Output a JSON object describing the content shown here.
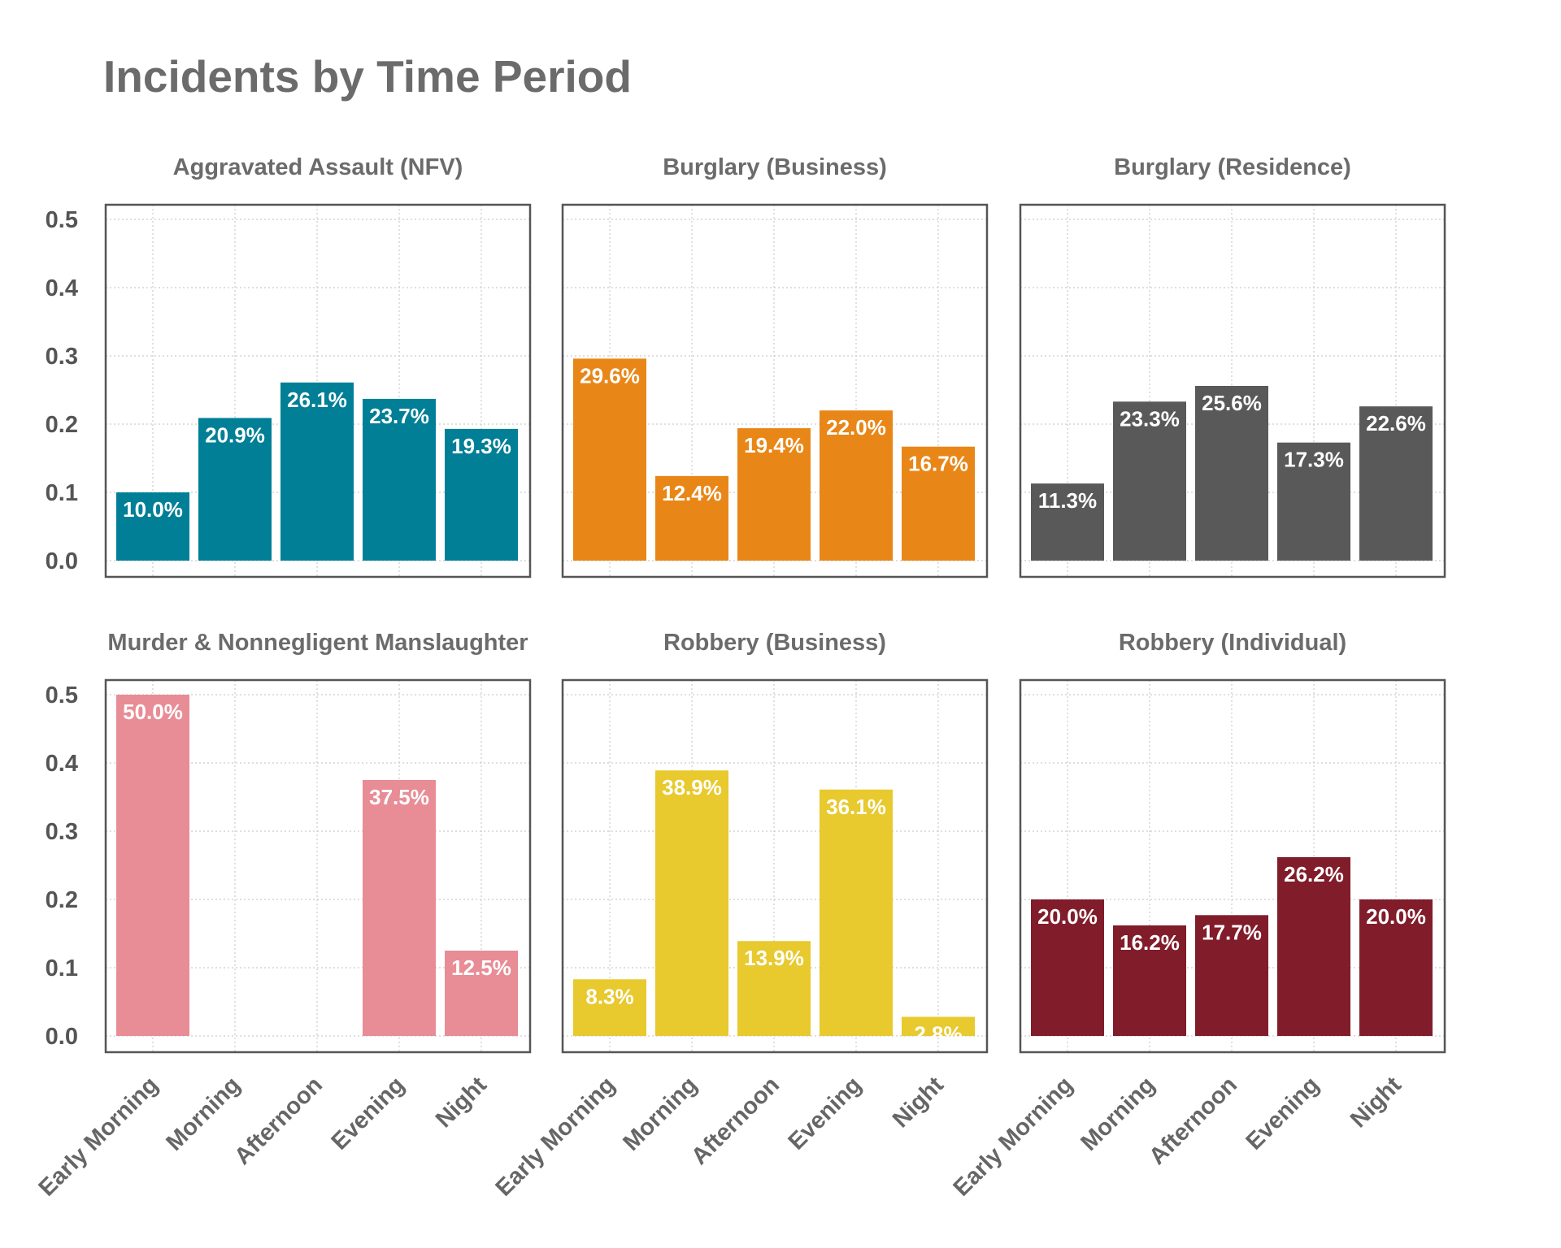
{
  "chart_data": {
    "type": "bar",
    "title": "Incidents by Time Period",
    "categories": [
      "Early Morning",
      "Morning",
      "Afternoon",
      "Evening",
      "Night"
    ],
    "ylim": [
      0,
      0.52
    ],
    "yticks": [
      "0.0",
      "0.1",
      "0.2",
      "0.3",
      "0.4",
      "0.5"
    ],
    "grid": true,
    "panels": [
      {
        "name": "Aggravated Assault (NFV)",
        "color": "#007f96",
        "values": [
          0.1,
          0.209,
          0.261,
          0.237,
          0.193
        ],
        "labels": [
          "10.0%",
          "20.9%",
          "26.1%",
          "23.7%",
          "19.3%"
        ]
      },
      {
        "name": "Burglary (Business)",
        "color": "#e88718",
        "values": [
          0.296,
          0.124,
          0.194,
          0.22,
          0.167
        ],
        "labels": [
          "29.6%",
          "12.4%",
          "19.4%",
          "22.0%",
          "16.7%"
        ]
      },
      {
        "name": "Burglary (Residence)",
        "color": "#595959",
        "values": [
          0.113,
          0.233,
          0.256,
          0.173,
          0.226
        ],
        "labels": [
          "11.3%",
          "23.3%",
          "25.6%",
          "17.3%",
          "22.6%"
        ]
      },
      {
        "name": "Murder & Nonnegligent Manslaughter",
        "color": "#e88c96",
        "values": [
          0.5,
          0,
          0,
          0.375,
          0.125
        ],
        "labels": [
          "50.0%",
          "",
          "",
          "37.5%",
          "12.5%"
        ]
      },
      {
        "name": "Robbery (Business)",
        "color": "#e8c92e",
        "values": [
          0.083,
          0.389,
          0.139,
          0.361,
          0.028
        ],
        "labels": [
          "8.3%",
          "38.9%",
          "13.9%",
          "36.1%",
          "2.8%"
        ]
      },
      {
        "name": "Robbery (Individual)",
        "color": "#811c2a",
        "values": [
          0.2,
          0.162,
          0.177,
          0.262,
          0.2
        ],
        "labels": [
          "20.0%",
          "16.2%",
          "17.7%",
          "26.2%",
          "20.0%"
        ]
      }
    ]
  }
}
